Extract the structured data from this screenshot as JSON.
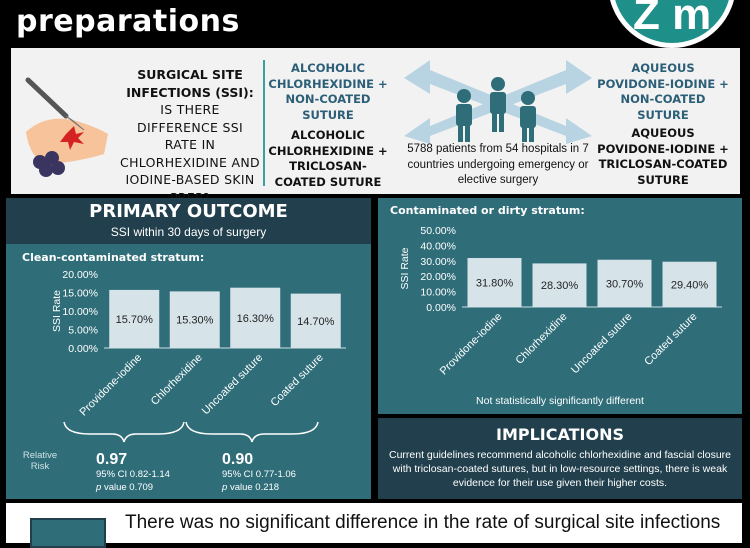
{
  "header": {
    "title": "preparations"
  },
  "question": {
    "lead": "SURGICAL SITE INFECTIONS (SSI):",
    "rest": "IS THERE DIFFERENCE SSI RATE IN CHLORHEXIDINE AND IODINE-BASED SKIN PREP?"
  },
  "arms": {
    "a1": "ALCOHOLIC CHLORHEXIDINE + NON-COATED SUTURE",
    "a2": "ALCOHOLIC CHLORHEXIDINE + TRICLOSAN-COATED SUTURE",
    "b1": "AQUEOUS POVIDONE-IODINE + NON-COATED SUTURE",
    "b2": "AQUEOUS POVIDONE-IODINE + TRICLOSAN-COATED SUTURE"
  },
  "patients": "5788 patients from 54 hospitals in 7 countries undergoing emergency or elective surgery",
  "primary": {
    "title": "PRIMARY OUTCOME",
    "subtitle": "SSI within 30 days of surgery",
    "stratum": "Clean-contaminated stratum:"
  },
  "relative_risk": {
    "label": "Relative Risk",
    "left": {
      "value": "0.97",
      "ci": "95% CI 0.82-1.14",
      "p_label": "p",
      "p_value": "value 0.709"
    },
    "right": {
      "value": "0.90",
      "ci": "95% CI 0.77-1.06",
      "p_label": "p",
      "p_value": "value 0.218"
    }
  },
  "secondary": {
    "stratum": "Contaminated or dirty stratum:",
    "note": "Not statistically significantly different"
  },
  "implications": {
    "title": "IMPLICATIONS",
    "text": "Current guidelines recommend alcoholic chlorhexidine and fascial closure with triclosan-coated sutures, but in low-resource settings, there is weak evidence for their use given their higher costs."
  },
  "bottom": {
    "text": "There was no significant difference in the rate of surgical site infections"
  },
  "colors": {
    "teal": "#2f6d79",
    "navy": "#213f4c",
    "bar": "#d6e4ea",
    "accent": "#3b9fa0"
  },
  "chart_data": [
    {
      "type": "bar",
      "categories": [
        "Providone-iodine",
        "Chlorhexidine",
        "Uncoated suture",
        "Coated suture"
      ],
      "values": [
        15.7,
        15.3,
        16.3,
        14.7
      ],
      "labels": [
        "15.70%",
        "15.30%",
        "16.30%",
        "14.70%"
      ],
      "ylabel": "SSI Rate",
      "yticks": [
        "20.00%",
        "15.00%",
        "10.00%",
        "5.00%",
        "0.00%"
      ],
      "ylim": [
        0,
        20
      ]
    },
    {
      "type": "bar",
      "categories": [
        "Providone-iodine",
        "Chlorhexidine",
        "Uncoated suture",
        "Coated suture"
      ],
      "values": [
        31.8,
        28.3,
        30.7,
        29.4
      ],
      "labels": [
        "31.80%",
        "28.30%",
        "30.70%",
        "29.40%"
      ],
      "ylabel": "SSI Rate",
      "yticks": [
        "50.00%",
        "40.00%",
        "30.00%",
        "20.00%",
        "10.00%",
        "0.00%"
      ],
      "ylim": [
        0,
        50
      ]
    }
  ]
}
